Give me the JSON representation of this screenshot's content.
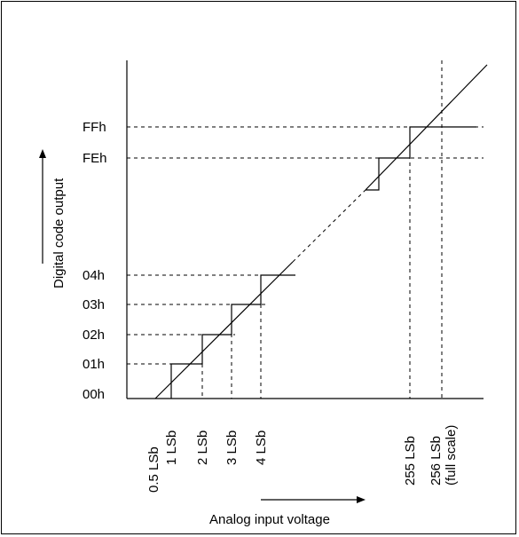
{
  "diagram": {
    "y_axis_title": "Digital code output",
    "x_axis_title": "Analog input voltage",
    "y_labels": {
      "c00": "00h",
      "c01": "01h",
      "c02": "02h",
      "c03": "03h",
      "c04": "04h",
      "cFE": "FEh",
      "cFF": "FFh"
    },
    "x_labels": {
      "half": "0.5 LSb",
      "one": "1 LSb",
      "two": "2 LSb",
      "three": "3 LSb",
      "four": "4 LSb",
      "l255": "255 LSb",
      "l256": "256 LSb",
      "l256_note": "(full scale)"
    }
  }
}
